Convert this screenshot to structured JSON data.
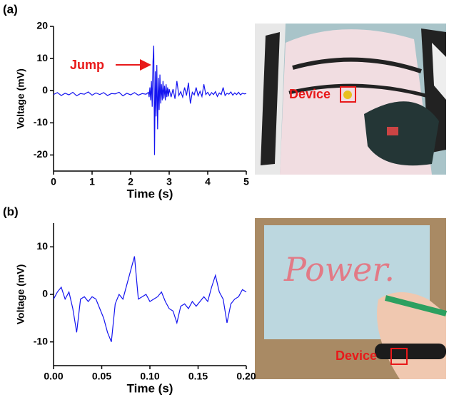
{
  "chart_data": [
    {
      "type": "line",
      "panel_label": "(a)",
      "annotation": "Jump",
      "x_label": "Time (s)",
      "y_label": "Voltage (mV)",
      "x": [
        0,
        0.1,
        0.2,
        0.3,
        0.4,
        0.5,
        0.6,
        0.7,
        0.8,
        0.9,
        1,
        1.1,
        1.2,
        1.3,
        1.4,
        1.5,
        1.6,
        1.7,
        1.8,
        1.9,
        2,
        2.1,
        2.2,
        2.3,
        2.4,
        2.46,
        2.48,
        2.5,
        2.52,
        2.54,
        2.56,
        2.58,
        2.6,
        2.62,
        2.64,
        2.66,
        2.68,
        2.7,
        2.72,
        2.74,
        2.76,
        2.78,
        2.8,
        2.82,
        2.84,
        2.86,
        2.88,
        2.9,
        2.92,
        2.94,
        2.96,
        2.98,
        3,
        3.05,
        3.1,
        3.15,
        3.2,
        3.25,
        3.3,
        3.35,
        3.4,
        3.45,
        3.5,
        3.55,
        3.6,
        3.65,
        3.7,
        3.75,
        3.8,
        3.85,
        3.9,
        3.95,
        4,
        4.05,
        4.1,
        4.15,
        4.2,
        4.25,
        4.3,
        4.35,
        4.4,
        4.45,
        4.5,
        4.55,
        4.6,
        4.65,
        4.7,
        4.75,
        4.8,
        4.85,
        4.9,
        4.95,
        5
      ],
      "series": [
        {
          "color": "#1414f0",
          "values": [
            -1.2,
            -0.6,
            -1.5,
            -0.8,
            -1.3,
            -0.5,
            -1.6,
            -0.9,
            -1.1,
            -0.4,
            -1.4,
            -0.7,
            -1.2,
            -0.6,
            -1.5,
            -0.9,
            -1.0,
            -0.5,
            -1.6,
            -0.8,
            -1.3,
            -0.6,
            -1.4,
            -0.9,
            -1.1,
            -0.5,
            -2,
            1,
            -3,
            3,
            -5,
            9,
            14,
            -20,
            6,
            -8,
            8,
            -12,
            4,
            -6,
            5,
            -4,
            2,
            -3,
            3,
            -2.5,
            1.5,
            -3,
            2,
            -2,
            1,
            -1.8,
            0.5,
            -2,
            0.5,
            -2.5,
            3,
            -1.5,
            -0.3,
            -2,
            1,
            -1.5,
            2.5,
            -4,
            -0.5,
            -1.3,
            1,
            -1.6,
            -0.2,
            -1.8,
            2,
            -1.2,
            -0.5,
            -1.5,
            -0.6,
            -1.2,
            -0.3,
            -1.8,
            -0.7,
            -1.2,
            1,
            -1.5,
            -0.8,
            -1.1,
            -0.4,
            -1.4,
            -0.7,
            -1.2,
            -0.5,
            -1.3,
            -0.8,
            -1.0,
            -0.9
          ]
        }
      ],
      "xlim": [
        0,
        5
      ],
      "xticks": [
        0,
        1,
        2,
        3,
        4,
        5
      ],
      "ylim": [
        -25,
        20
      ],
      "yticks": [
        -20,
        -10,
        0,
        10,
        20
      ]
    },
    {
      "type": "line",
      "panel_label": "(b)",
      "x_label": "Time (s)",
      "y_label": "Voltage (mV)",
      "x": [
        0,
        0.004,
        0.008,
        0.012,
        0.016,
        0.02,
        0.024,
        0.028,
        0.032,
        0.036,
        0.04,
        0.044,
        0.048,
        0.052,
        0.056,
        0.06,
        0.064,
        0.068,
        0.072,
        0.076,
        0.08,
        0.084,
        0.088,
        0.092,
        0.096,
        0.1,
        0.104,
        0.108,
        0.112,
        0.116,
        0.12,
        0.124,
        0.128,
        0.132,
        0.136,
        0.14,
        0.144,
        0.148,
        0.152,
        0.156,
        0.16,
        0.164,
        0.168,
        0.172,
        0.176,
        0.18,
        0.184,
        0.188,
        0.192,
        0.196,
        0.2
      ],
      "series": [
        {
          "color": "#1414f0",
          "values": [
            -1,
            0.5,
            1.5,
            -1,
            0.5,
            -3,
            -8,
            -1,
            -0.5,
            -1.5,
            -0.5,
            -1,
            -3,
            -5,
            -8,
            -10,
            -2,
            0,
            -1,
            2,
            5,
            8,
            -1,
            -0.5,
            0,
            -1.5,
            -1,
            -0.5,
            0.5,
            -1.5,
            -3,
            -3.5,
            -6,
            -2.5,
            -2,
            -3,
            -1.5,
            -2.5,
            -1.5,
            -0.5,
            -1.5,
            1.5,
            4,
            0.5,
            -1,
            -6,
            -2,
            -1,
            -0.5,
            1,
            0.5
          ]
        }
      ],
      "xlim": [
        0,
        0.2
      ],
      "xticks": [
        {
          "value": 0,
          "label": "0.00"
        },
        {
          "value": 0.05,
          "label": "0.05"
        },
        {
          "value": 0.1,
          "label": "0.10"
        },
        {
          "value": 0.15,
          "label": "0.15"
        },
        {
          "value": 0.2,
          "label": "0.20"
        }
      ],
      "ylim": [
        -15,
        15
      ],
      "yticks": [
        -10,
        0,
        10
      ]
    }
  ],
  "photos": [
    {
      "device_label": "Device"
    },
    {
      "device_label": "Device",
      "handwriting": "Power."
    }
  ]
}
